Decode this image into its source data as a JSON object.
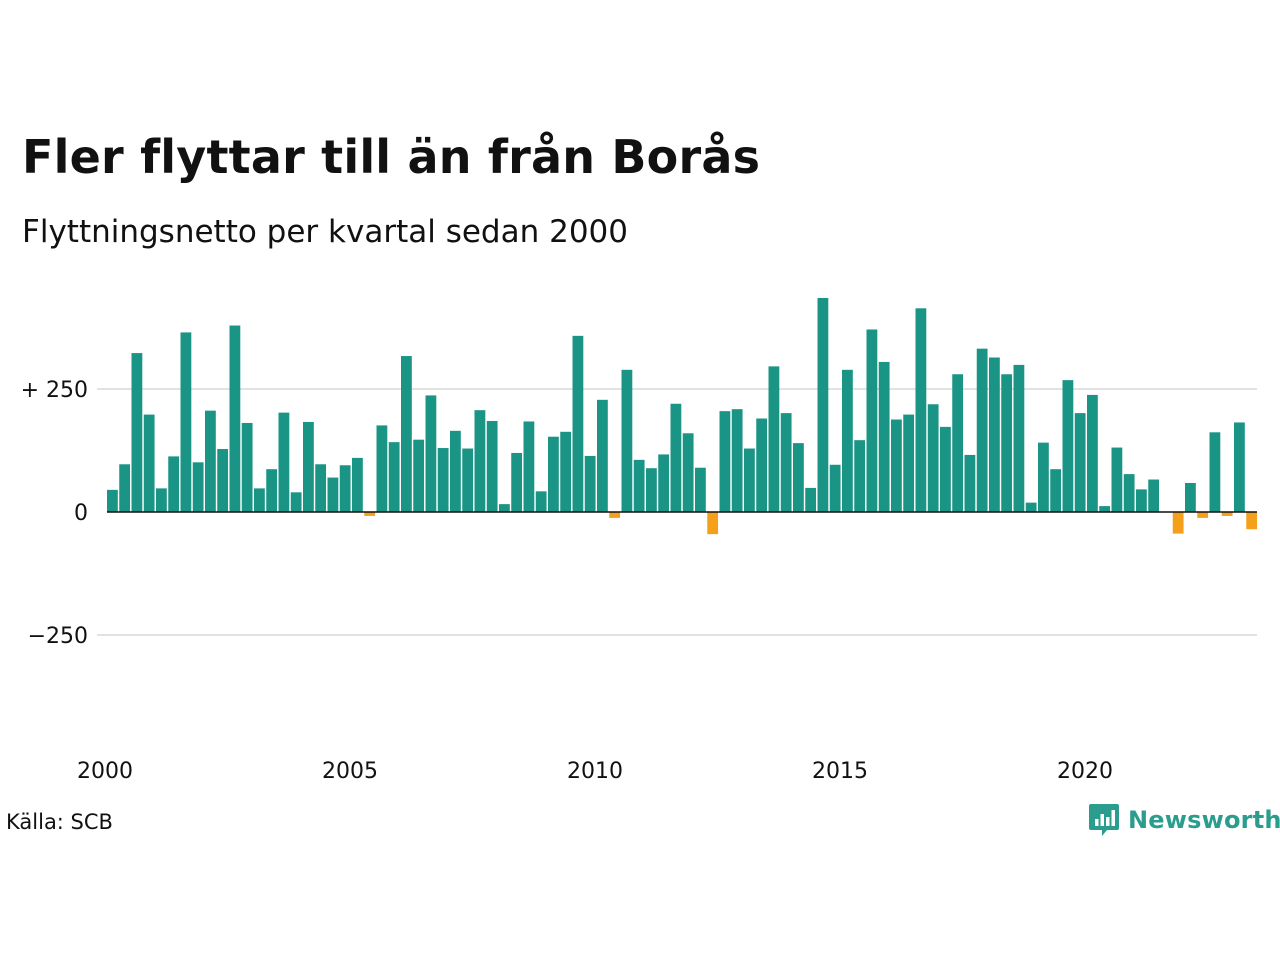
{
  "header": {
    "title": "Fler flyttar till än från Borås",
    "subtitle": "Flyttningsnetto per kvartal sedan 2000"
  },
  "footer": {
    "source": "Källa: SCB",
    "brand": "Newsworthy",
    "brand_icon": "bar-chart-speech-bubble-icon"
  },
  "colors": {
    "positive": "#1a9485",
    "negative": "#f5a01a",
    "grid": "#e2e2e2",
    "axis": "#111111",
    "brand": "#2a9d8f"
  },
  "chart_data": {
    "type": "bar",
    "title": "Fler flyttar till än från Borås",
    "subtitle": "Flyttningsnetto per kvartal sedan 2000",
    "start_year": 2000,
    "periods_per_year": 4,
    "x_tick_labels": [
      "2000",
      "2005",
      "2010",
      "2015",
      "2020"
    ],
    "y_ticks": [
      {
        "value": 250,
        "label": "+ 250"
      },
      {
        "value": 0,
        "label": "0"
      },
      {
        "value": -250,
        "label": "−250"
      }
    ],
    "ylim": [
      -450,
      450
    ],
    "grid": true,
    "values": [
      45,
      97,
      323,
      198,
      48,
      113,
      365,
      101,
      206,
      128,
      379,
      181,
      48,
      87,
      202,
      40,
      183,
      97,
      70,
      95,
      110,
      -8,
      176,
      142,
      317,
      147,
      237,
      130,
      165,
      129,
      207,
      185,
      16,
      120,
      184,
      42,
      153,
      163,
      358,
      114,
      228,
      -12,
      289,
      106,
      89,
      117,
      220,
      160,
      90,
      -45,
      205,
      209,
      129,
      190,
      296,
      201,
      140,
      49,
      435,
      96,
      289,
      146,
      371,
      305,
      188,
      198,
      414,
      219,
      173,
      280,
      116,
      332,
      314,
      280,
      299,
      19,
      141,
      87,
      268,
      201,
      238,
      12,
      131,
      77,
      46,
      66,
      0,
      -44,
      59,
      -12,
      162,
      -8,
      182,
      -35
    ]
  }
}
